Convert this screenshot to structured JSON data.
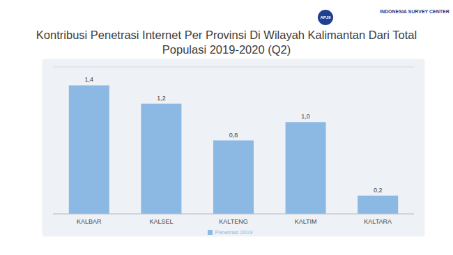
{
  "chart_data": {
    "type": "bar",
    "title": "Kontribusi Penetrasi Internet Per Provinsi Di Wilayah Kalimantan Dari Total Populasi 2019-2020 (Q2)",
    "annotations": [
      "APJII",
      "INDONESIA SURVEY CENTER"
    ],
    "categories": [
      "KALBAR",
      "KALSEL",
      "KALTENG",
      "KALTIM",
      "KALTARA"
    ],
    "series": [
      {
        "name": "Penetrasi 2019",
        "color": "#8bb9e3",
        "values": [
          1.4,
          1.2,
          0.8,
          1.0,
          0.2
        ],
        "value_labels": [
          "1,4",
          "1,2",
          "0,8",
          "1,0",
          "0,2"
        ]
      }
    ],
    "ylim": [
      0,
      1.6
    ],
    "yticks": [
      0,
      0.2,
      0.4,
      0.6,
      0.8,
      1.0,
      1.2,
      1.4,
      1.6
    ],
    "grid": true,
    "data_labels": true,
    "tick_labels": "x",
    "legend": "bottom"
  }
}
